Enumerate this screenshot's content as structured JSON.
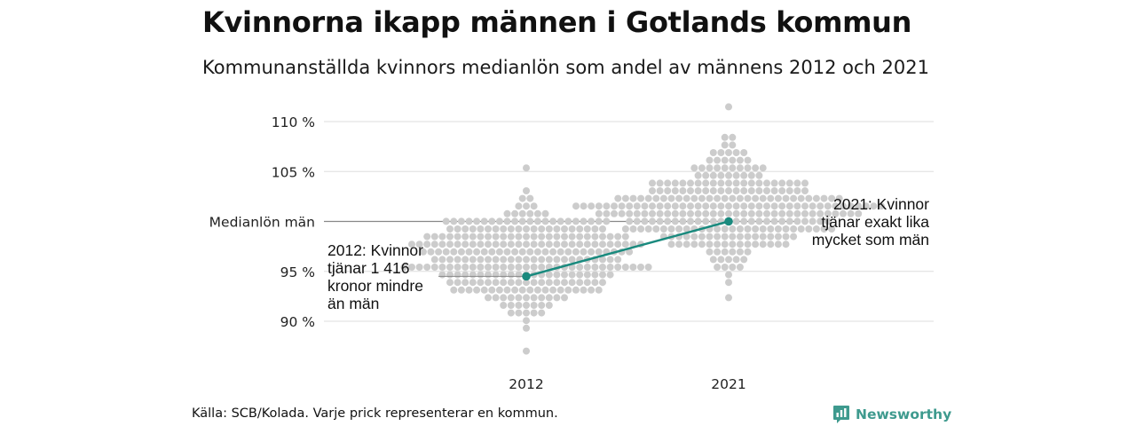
{
  "title": "Kvinnorna ikapp männen i Gotlands kommun",
  "subtitle": "Kommunanställda kvinnors medianlön som andel av männens 2012 och 2021",
  "footer": "Källa: SCB/Kolada. Varje prick representerar en kommun.",
  "brand": {
    "name": "Newsworthy",
    "color": "#3e9a8e"
  },
  "annotations": {
    "y2012": [
      "2012: Kvinnor",
      "tjänar 1 416",
      "kronor mindre",
      "än män"
    ],
    "y2021": [
      "2021: Kvinnor",
      "tjänar exakt lika",
      "mycket som män"
    ]
  },
  "colors": {
    "dots": "#cccccc",
    "highlight": "#1a8a7e",
    "grid": "#dddddd",
    "reference": "#888888"
  },
  "chart_data": {
    "type": "scatter",
    "subtype": "beeswarm",
    "categories": [
      "2012",
      "2021"
    ],
    "ylim": [
      86,
      112
    ],
    "yticks": [
      {
        "value": 90,
        "label": "90 %"
      },
      {
        "value": 95,
        "label": "95 %"
      },
      {
        "value": 100,
        "label": "Medianlön män"
      },
      {
        "value": 105,
        "label": "105 %"
      },
      {
        "value": 110,
        "label": "110 %"
      }
    ],
    "reference_line": {
      "value": 100,
      "label": "Medianlön män"
    },
    "highlight": {
      "name": "Gotland",
      "values": [
        {
          "category": "2012",
          "value": 94.5
        },
        {
          "category": "2021",
          "value": 100.0
        }
      ]
    },
    "distribution_summary": [
      {
        "category": "2012",
        "count": 290,
        "min": 87.0,
        "max": 105.2,
        "center": 96.3,
        "spread": 2.7
      },
      {
        "category": "2021",
        "count": 290,
        "min": 92.5,
        "max": 111.2,
        "center": 101.3,
        "spread": 2.6
      }
    ],
    "xlabel": "",
    "ylabel": ""
  }
}
